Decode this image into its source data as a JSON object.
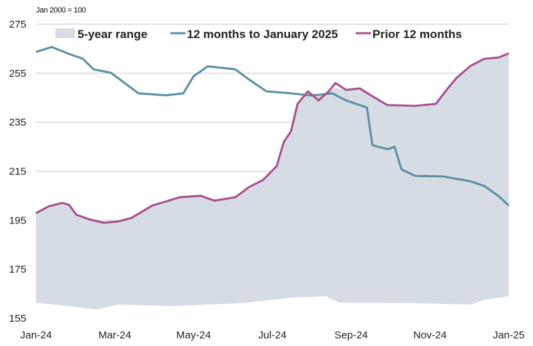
{
  "chart_data": {
    "type": "area",
    "note": "Jan 2000 = 100",
    "ylim": [
      155,
      275
    ],
    "yticks": [
      155,
      175,
      195,
      215,
      235,
      255,
      275
    ],
    "xticks": [
      {
        "m": 0,
        "label": "Jan-24"
      },
      {
        "m": 2,
        "label": "Mar-24"
      },
      {
        "m": 4,
        "label": "May-24"
      },
      {
        "m": 6,
        "label": "Jul-24"
      },
      {
        "m": 8,
        "label": "Sep-24"
      },
      {
        "m": 10,
        "label": "Nov-24"
      },
      {
        "m": 12,
        "label": "Jan-25"
      }
    ],
    "xlim": [
      0,
      12
    ],
    "grid": true,
    "legend": "top",
    "colors": {
      "range": "#d6dce4",
      "current": "#5b8fa3",
      "prior": "#a8508c"
    },
    "range": {
      "name": "5-year range",
      "upper": [
        [
          0,
          198.5
        ],
        [
          0.32,
          201
        ],
        [
          0.67,
          202.5
        ],
        [
          0.84,
          201.5
        ],
        [
          1.02,
          197.5
        ],
        [
          1.37,
          195.5
        ],
        [
          1.72,
          194.5
        ],
        [
          2.07,
          195
        ],
        [
          2.42,
          196.5
        ],
        [
          2.95,
          201.5
        ],
        [
          3.65,
          204.5
        ],
        [
          4.18,
          205.5
        ],
        [
          4.53,
          203.5
        ],
        [
          5.06,
          204.5
        ],
        [
          5.41,
          208.6
        ],
        [
          5.76,
          211.4
        ],
        [
          6.11,
          217.1
        ],
        [
          6.29,
          227
        ],
        [
          6.47,
          231.2
        ],
        [
          6.64,
          243
        ],
        [
          6.9,
          247.6
        ],
        [
          7.17,
          246
        ],
        [
          7.43,
          247.6
        ],
        [
          7.6,
          249
        ],
        [
          7.87,
          248.2
        ],
        [
          8.22,
          248.8
        ],
        [
          8.57,
          245.3
        ],
        [
          8.92,
          242.5
        ],
        [
          9.63,
          242
        ],
        [
          10.15,
          242.8
        ],
        [
          10.42,
          248.5
        ],
        [
          10.68,
          253.5
        ],
        [
          11.03,
          258.3
        ],
        [
          11.38,
          261.2
        ],
        [
          11.74,
          261.8
        ],
        [
          12,
          263.5
        ]
      ],
      "lower": [
        [
          0,
          161.4
        ],
        [
          0.8,
          160
        ],
        [
          1.55,
          158.6
        ],
        [
          2.07,
          160.6
        ],
        [
          3.48,
          160
        ],
        [
          5.23,
          161.2
        ],
        [
          6.47,
          163.4
        ],
        [
          7.35,
          164
        ],
        [
          7.7,
          161.4
        ],
        [
          9.63,
          161.2
        ],
        [
          11.03,
          160.6
        ],
        [
          11.38,
          162.6
        ],
        [
          12,
          164
        ]
      ]
    },
    "series": [
      {
        "name": "12 months to January 2025",
        "points": [
          [
            0,
            263.7
          ],
          [
            0.4,
            265.7
          ],
          [
            0.84,
            262.9
          ],
          [
            1.19,
            260.9
          ],
          [
            1.46,
            256.6
          ],
          [
            1.9,
            255.2
          ],
          [
            2.25,
            251
          ],
          [
            2.6,
            246.8
          ],
          [
            3.3,
            246
          ],
          [
            3.74,
            246.8
          ],
          [
            4.0,
            253.8
          ],
          [
            4.36,
            257.8
          ],
          [
            5.06,
            256.6
          ],
          [
            5.41,
            252.4
          ],
          [
            5.85,
            247.6
          ],
          [
            6.47,
            246.8
          ],
          [
            6.99,
            245.9
          ],
          [
            7.52,
            246.8
          ],
          [
            7.87,
            243.9
          ],
          [
            8.22,
            242
          ],
          [
            8.4,
            241
          ],
          [
            8.54,
            225.6
          ],
          [
            8.93,
            224
          ],
          [
            9.1,
            225
          ],
          [
            9.28,
            215.7
          ],
          [
            9.63,
            213.1
          ],
          [
            10.33,
            212.9
          ],
          [
            11.03,
            210.9
          ],
          [
            11.38,
            209
          ],
          [
            11.74,
            204.9
          ],
          [
            12,
            201
          ]
        ]
      },
      {
        "name": "Prior 12 months",
        "points": [
          [
            0,
            197.9
          ],
          [
            0.32,
            200.7
          ],
          [
            0.67,
            202.1
          ],
          [
            0.84,
            201.3
          ],
          [
            1.02,
            197.3
          ],
          [
            1.37,
            195.3
          ],
          [
            1.72,
            194
          ],
          [
            2.07,
            194.5
          ],
          [
            2.42,
            195.9
          ],
          [
            2.95,
            201
          ],
          [
            3.65,
            204.4
          ],
          [
            4.18,
            205
          ],
          [
            4.53,
            203
          ],
          [
            5.06,
            204.4
          ],
          [
            5.41,
            208.6
          ],
          [
            5.76,
            211.4
          ],
          [
            6.11,
            217.1
          ],
          [
            6.29,
            227
          ],
          [
            6.47,
            231.2
          ],
          [
            6.64,
            242.5
          ],
          [
            6.9,
            247.6
          ],
          [
            7.17,
            243.9
          ],
          [
            7.43,
            247.6
          ],
          [
            7.6,
            251
          ],
          [
            7.87,
            248.2
          ],
          [
            8.22,
            248.8
          ],
          [
            8.57,
            245.3
          ],
          [
            8.92,
            242
          ],
          [
            9.63,
            241.7
          ],
          [
            10.15,
            242.5
          ],
          [
            10.42,
            248.2
          ],
          [
            10.68,
            253.2
          ],
          [
            11.03,
            258
          ],
          [
            11.38,
            260.9
          ],
          [
            11.74,
            261.4
          ],
          [
            12,
            263.1
          ]
        ]
      }
    ]
  }
}
